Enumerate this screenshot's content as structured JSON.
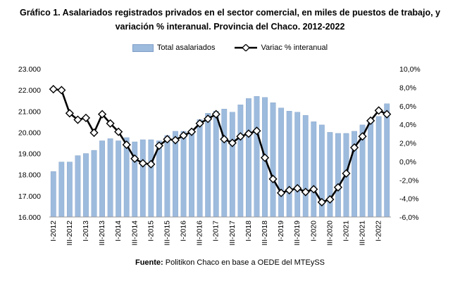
{
  "title_line1": "Gráfico 1. Asalariados registrados privados en el sector comercial, en miles de puestos de trabajo, y",
  "title_line2": "variación % interanual. Provincia del Chaco. 2012-2022",
  "source_label": "Fuente:",
  "source_text": "Politikon Chaco en base a OEDE del MTEySS",
  "colors": {
    "bars": "#9dbbdd",
    "bar_border": "#7f9ec7",
    "line": "#000000",
    "marker_fill": "#ffffff"
  },
  "chart_data": {
    "type": "bar+line",
    "categories": [
      "I-2012",
      "II-2012",
      "III-2012",
      "IV-2012",
      "I-2013",
      "II-2013",
      "III-2013",
      "IV-2013",
      "I-2014",
      "II-2014",
      "III-2014",
      "IV-2014",
      "I-2015",
      "II-2015",
      "III-2015",
      "IV-2015",
      "I-2016",
      "II-2016",
      "III-2016",
      "IV-2016",
      "I-2017",
      "II-2017",
      "III-2017",
      "IV-2017",
      "I-2018",
      "II-2018",
      "III-2018",
      "IV-2018",
      "I-2019",
      "II-2019",
      "III-2019",
      "IV-2019",
      "I-2020",
      "II-2020",
      "III-2020",
      "IV-2020",
      "I-2021",
      "II-2021",
      "III-2021",
      "IV-2021",
      "I-2022",
      "II-2022"
    ],
    "x_tick_labels": [
      "I-2012",
      "III-2012",
      "I-2013",
      "III-2013",
      "I-2014",
      "III-2014",
      "I-2015",
      "III-2015",
      "I-2016",
      "III-2016",
      "I-2017",
      "III-2017",
      "I-2018",
      "III-2018",
      "I-2019",
      "III-2019",
      "I-2020",
      "III-2020",
      "I-2021",
      "III-2021",
      "I-2022"
    ],
    "series": [
      {
        "name": "Total asalariados",
        "type": "bar",
        "axis": "left",
        "values": [
          18.15,
          18.6,
          18.6,
          18.9,
          19.0,
          19.15,
          19.6,
          19.7,
          19.6,
          19.75,
          19.55,
          19.65,
          19.65,
          19.6,
          19.85,
          20.05,
          20.05,
          20.1,
          20.6,
          20.9,
          21.0,
          21.1,
          20.95,
          21.3,
          21.6,
          21.7,
          21.65,
          21.4,
          21.15,
          21.0,
          20.95,
          20.8,
          20.5,
          20.35,
          20.0,
          19.95,
          19.95,
          20.05,
          20.35,
          20.5,
          20.75,
          21.35
        ]
      },
      {
        "name": "Variac % interanual",
        "type": "line",
        "axis": "right",
        "values": [
          7.8,
          7.7,
          5.2,
          4.5,
          4.7,
          3.1,
          5.1,
          4.1,
          3.2,
          1.8,
          0.3,
          -0.2,
          -0.3,
          1.7,
          2.4,
          2.3,
          2.8,
          3.2,
          4.1,
          4.6,
          5.1,
          2.4,
          2.0,
          2.7,
          3.0,
          3.3,
          0.4,
          -1.9,
          -3.4,
          -3.1,
          -2.9,
          -3.3,
          -3.0,
          -4.4,
          -4.1,
          -2.8,
          -1.3,
          1.5,
          2.7,
          4.4,
          5.5,
          5.1
        ]
      }
    ],
    "y_left": {
      "min": 16.0,
      "max": 23.0,
      "step": 1.0,
      "tick_labels": [
        "16.000",
        "17.000",
        "18.000",
        "19.000",
        "20.000",
        "21.000",
        "22.000",
        "23.000"
      ]
    },
    "y_right": {
      "min": -6.0,
      "max": 10.0,
      "step": 2.0,
      "tick_labels": [
        "-6,0%",
        "-4,0%",
        "-2,0%",
        "0,0%",
        "2,0%",
        "4,0%",
        "6,0%",
        "8,0%",
        "10,0%"
      ]
    },
    "legend_position": "top"
  }
}
